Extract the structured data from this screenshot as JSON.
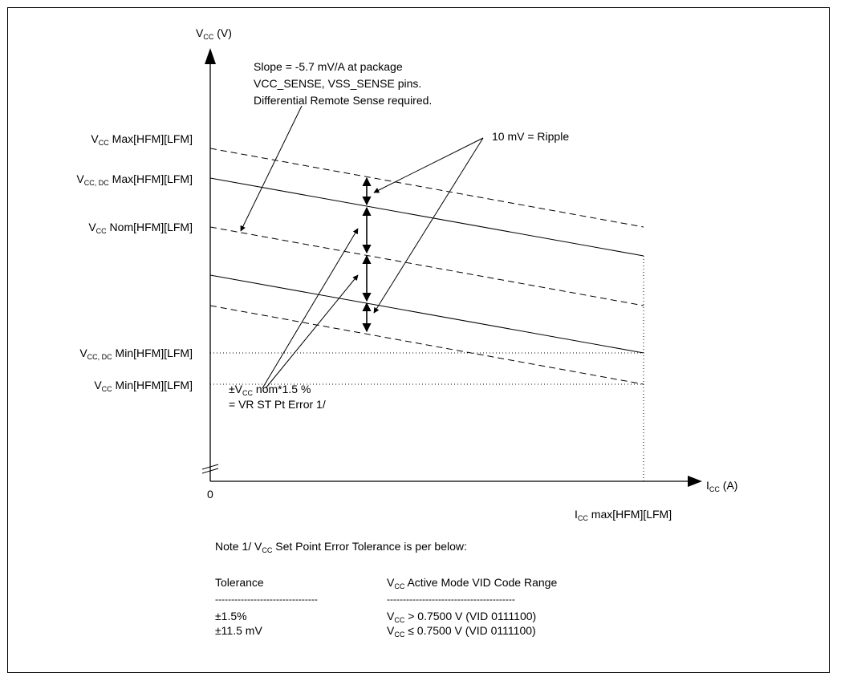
{
  "y_axis": {
    "title_main": "V",
    "title_sub": "CC",
    "title_tail": " (V)",
    "levels": [
      {
        "main": "V",
        "sub": "CC",
        "tail": "  Max[HFM][LFM]"
      },
      {
        "main": "V",
        "sub": "CC, DC",
        "tail": "  Max[HFM][LFM]"
      },
      {
        "main": "V",
        "sub": "CC",
        "tail": "  Nom[HFM][LFM]"
      },
      {
        "main": "V",
        "sub": "CC, DC",
        "tail": "  Min[HFM][LFM]"
      },
      {
        "main": "V",
        "sub": "CC",
        "tail": "  Min[HFM][LFM]"
      }
    ]
  },
  "x_axis": {
    "origin": "0",
    "title_main": "I",
    "title_sub": "CC",
    "title_tail": " (A)",
    "max_main": "I",
    "max_sub": "CC",
    "max_tail": "  max[HFM][LFM]"
  },
  "annotations": {
    "slope_lines": [
      "Slope = -5.7 mV/A at package",
      "VCC_SENSE, VSS_SENSE pins.",
      "Differential Remote Sense required."
    ],
    "ripple": "10 mV = Ripple",
    "error_pm": "±V",
    "error_sub": "CC",
    "error_tail": " nom*1.5 %",
    "error_line2": "= VR ST Pt Error 1/"
  },
  "note": {
    "prefix": "Note 1/  V",
    "sub": "CC",
    "tail": " Set Point Error Tolerance is per below:",
    "col1_header": "Tolerance",
    "col2_header_main": "V",
    "col2_header_sub": "CC",
    "col2_header_tail": " Active Mode VID Code Range",
    "col1_dashes": "--------------------------------",
    "col2_dashes": "----------------------------------------",
    "rows": [
      {
        "tolerance": "±1.5%",
        "range_main": "V",
        "range_sub": "CC",
        "range_tail": " > 0.7500 V (VID   0111100)"
      },
      {
        "tolerance": "±11.5 mV",
        "range_main": "V",
        "range_sub": "CC",
        "range_tail": " ≤ 0.7500 V (VID   0111100)"
      }
    ]
  }
}
